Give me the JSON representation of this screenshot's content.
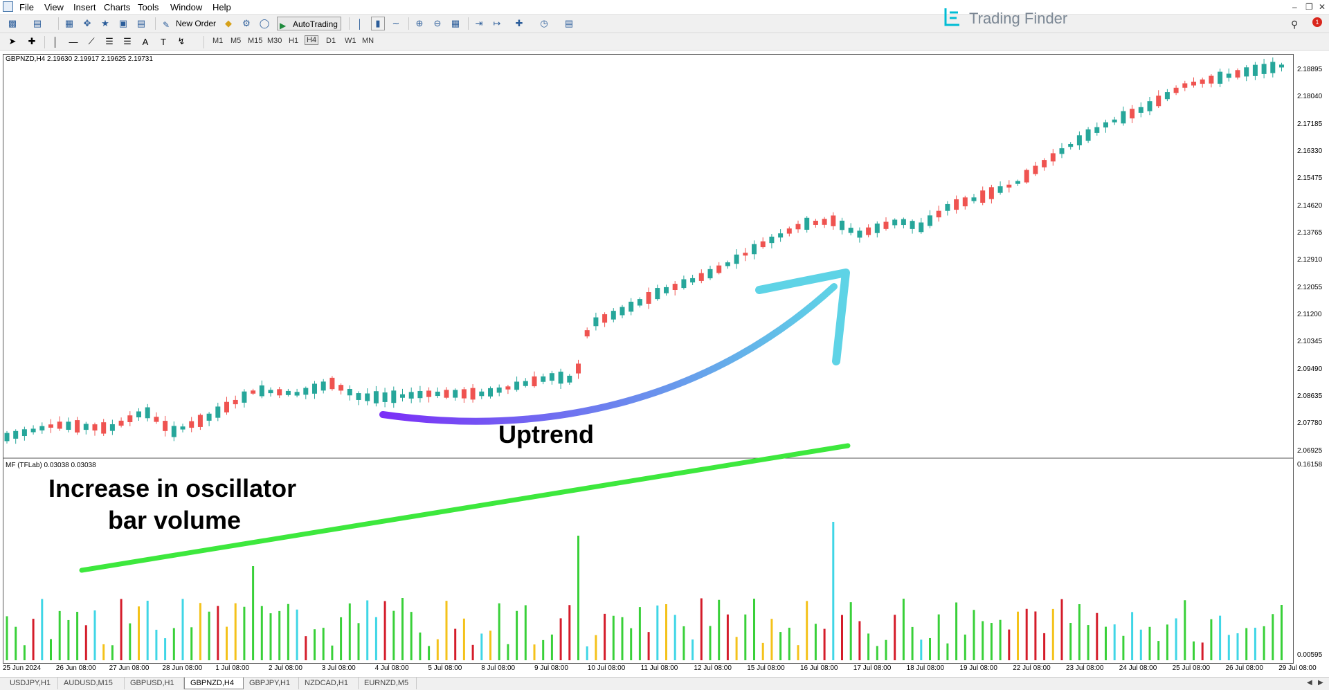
{
  "menu": [
    "File",
    "View",
    "Insert",
    "Charts",
    "Tools",
    "Window",
    "Help"
  ],
  "toolbar": {
    "new_order_label": "New Order",
    "autotrading_label": "AutoTrading",
    "timeframes": [
      "M1",
      "M5",
      "M15",
      "M30",
      "H1",
      "H4",
      "D1",
      "W1",
      "MN"
    ],
    "icons": [
      "new-chart-icon",
      "profiles-icon",
      "market-watch-icon",
      "navigator-icon",
      "data-window-icon",
      "terminal-icon",
      "strategy-tester-icon",
      "gold-icon",
      "options-icon",
      "autotrading-icon",
      "bar-chart-icon",
      "candle-chart-icon",
      "line-chart-icon",
      "zoom-in-icon",
      "zoom-out-icon",
      "tile-icon",
      "autoscroll-icon",
      "chart-shift-icon",
      "indicators-icon",
      "periods-icon",
      "templates-icon",
      "cursor-icon",
      "crosshair-icon",
      "vertical-line-icon",
      "horizontal-line-icon",
      "trendline-icon",
      "channel-icon",
      "fibonacci-icon",
      "text-icon",
      "text-label-icon",
      "arrows-icon"
    ]
  },
  "logo": {
    "text": "Trading Finder",
    "accent": "#00bcd4"
  },
  "notification_count": "1",
  "chart": {
    "symbol_header": "GBPNZD,H4  2.19630 2.19917 2.19625 2.19731",
    "indicator_header": "MF (TFLab) 0.03038 0.03038",
    "price_labels": [
      "2.18895",
      "2.18040",
      "2.17185",
      "2.16330",
      "2.15475",
      "2.14620",
      "2.13765",
      "2.12910",
      "2.12055",
      "2.11200",
      "2.10345",
      "2.09490",
      "2.08635",
      "2.07780",
      "2.06925"
    ],
    "indicator_labels": [
      "0.16158",
      "0.00595"
    ],
    "time_labels": [
      "25 Jun 2024",
      "26 Jun 08:00",
      "27 Jun 08:00",
      "28 Jun 08:00",
      "1 Jul 08:00",
      "2 Jul 08:00",
      "3 Jul 08:00",
      "4 Jul 08:00",
      "5 Jul 08:00",
      "8 Jul 08:00",
      "9 Jul 08:00",
      "10 Jul 08:00",
      "11 Jul 08:00",
      "12 Jul 08:00",
      "15 Jul 08:00",
      "16 Jul 08:00",
      "17 Jul 08:00",
      "18 Jul 08:00",
      "19 Jul 08:00",
      "22 Jul 08:00",
      "23 Jul 08:00",
      "24 Jul 08:00",
      "25 Jul 08:00",
      "26 Jul 08:00",
      "29 Jul 08:00"
    ],
    "colors": {
      "bull": "#26a69a",
      "bear": "#ef5350",
      "arrow_start": "#7b2ff7",
      "arrow_end": "#5ed3e6",
      "trend_line": "#3de83d"
    },
    "annotations": {
      "uptrend": "Uptrend",
      "oscillator_line1": "Increase in oscillator",
      "oscillator_line2": "bar volume"
    }
  },
  "tabs": [
    "USDJPY,H1",
    "AUDUSD,M15",
    "GBPUSD,H1",
    "GBPNZD,H4",
    "GBPJPY,H1",
    "NZDCAD,H1",
    "EURNZD,M5"
  ],
  "active_tab": "GBPNZD,H4"
}
